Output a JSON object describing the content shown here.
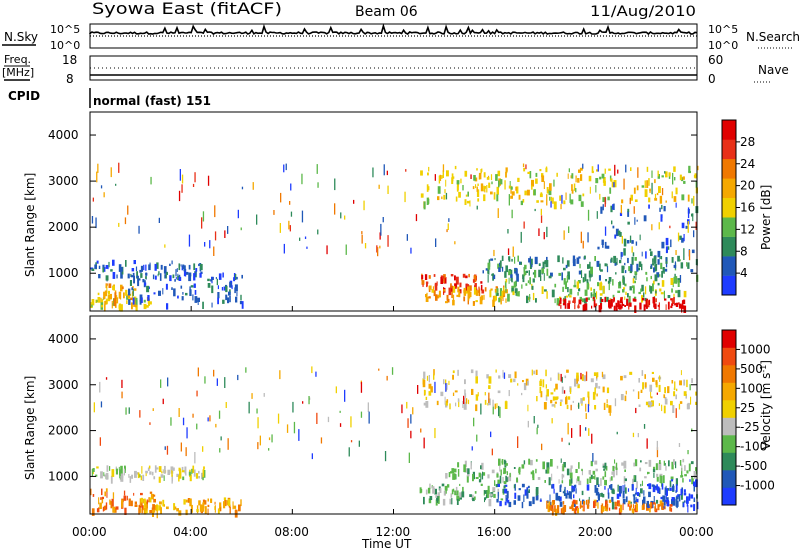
{
  "header": {
    "station": "Syowa East (fitACF)",
    "beam": "Beam 06",
    "date": "11/Aug/2010"
  },
  "top_panels": {
    "nsky_label": "N.Sky",
    "nsky_ticks": [
      "10^5",
      "10^0"
    ],
    "nsearch_label": "N.Search",
    "freq_label": "Freq.",
    "freq_unit": "[MHz]",
    "freq_ticks": [
      "18",
      "8"
    ],
    "nave_ticks": [
      "60",
      "0"
    ],
    "nave_label": "Nave",
    "cpid_label": "CPID",
    "cpid_value": "normal (fast) 151"
  },
  "colors": {
    "power": [
      "#1e3cff",
      "#2058b8",
      "#2e8a5a",
      "#5cb84a",
      "#f0d000",
      "#f5a800",
      "#f07800",
      "#e83018",
      "#e00000"
    ],
    "velocity": [
      "#e00000",
      "#f04a10",
      "#f07800",
      "#f5a800",
      "#f0d000",
      "#bdbdbd",
      "#5cb84a",
      "#2e8a5a",
      "#2058b8",
      "#1e3cff"
    ]
  },
  "chart_data": [
    {
      "type": "heatmap",
      "name": "power",
      "xlabel": "Time UT",
      "ylabel": "Slant Range [km]",
      "x_ticks": [
        "00:00",
        "04:00",
        "08:00",
        "12:00",
        "16:00",
        "20:00",
        "00:00"
      ],
      "y_ticks": [
        1000,
        2000,
        3000,
        4000
      ],
      "ylim": [
        180,
        4500
      ],
      "xlim_hours": [
        0,
        24
      ],
      "colorbar_label": "Power [dB]",
      "colorbar_ticks": [
        4,
        8,
        12,
        16,
        20,
        24,
        28
      ],
      "regions": [
        {
          "t0": 0.0,
          "t1": 2.4,
          "r0": 250,
          "r1": 500,
          "level": 4
        },
        {
          "t0": 0.3,
          "t1": 1.8,
          "r0": 300,
          "r1": 750,
          "level": 5
        },
        {
          "t0": 0.0,
          "t1": 4.5,
          "r0": 900,
          "r1": 1250,
          "level": 1
        },
        {
          "t0": 1.5,
          "t1": 6.0,
          "r0": 300,
          "r1": 1000,
          "level": 1
        },
        {
          "t0": 13.0,
          "t1": 15.5,
          "r0": 600,
          "r1": 950,
          "level": 7
        },
        {
          "t0": 13.2,
          "t1": 16.5,
          "r0": 350,
          "r1": 700,
          "level": 5
        },
        {
          "t0": 15.5,
          "t1": 24.0,
          "r0": 900,
          "r1": 1350,
          "level": 2
        },
        {
          "t0": 16.0,
          "t1": 23.5,
          "r0": 400,
          "r1": 900,
          "level": 3
        },
        {
          "t0": 18.5,
          "t1": 23.5,
          "r0": 250,
          "r1": 450,
          "level": 8
        },
        {
          "t0": 20.0,
          "t1": 24.0,
          "r0": 1400,
          "r1": 2500,
          "level": 1
        },
        {
          "t0": 13.0,
          "t1": 24.0,
          "r0": 2500,
          "r1": 3300,
          "level": 4
        }
      ]
    },
    {
      "type": "heatmap",
      "name": "velocity",
      "xlabel": "Time UT",
      "ylabel": "Slant Range [km]",
      "x_ticks": [
        "00:00",
        "04:00",
        "08:00",
        "12:00",
        "16:00",
        "20:00",
        "00:00"
      ],
      "y_ticks": [
        1000,
        2000,
        3000,
        4000
      ],
      "ylim": [
        180,
        4500
      ],
      "xlim_hours": [
        0,
        24
      ],
      "colorbar_label": "Velocity [m s^-1]",
      "colorbar_ticks": [
        1000,
        500,
        100,
        25,
        -25,
        -100,
        -500,
        -1000
      ],
      "regions": [
        {
          "t0": 0.0,
          "t1": 2.5,
          "r0": 250,
          "r1": 700,
          "level": 2
        },
        {
          "t0": 0.0,
          "t1": 4.5,
          "r0": 950,
          "r1": 1200,
          "level": 5
        },
        {
          "t0": 2.0,
          "t1": 6.0,
          "r0": 200,
          "r1": 500,
          "level": 3
        },
        {
          "t0": 13.0,
          "t1": 16.5,
          "r0": 450,
          "r1": 800,
          "level": 6
        },
        {
          "t0": 14.0,
          "t1": 24.0,
          "r0": 850,
          "r1": 1350,
          "level": 6
        },
        {
          "t0": 16.0,
          "t1": 24.0,
          "r0": 400,
          "r1": 800,
          "level": 8
        },
        {
          "t0": 18.0,
          "t1": 23.0,
          "r0": 250,
          "r1": 450,
          "level": 2
        },
        {
          "t0": 22.0,
          "t1": 24.0,
          "r0": 300,
          "r1": 900,
          "level": 9
        },
        {
          "t0": 13.0,
          "t1": 24.0,
          "r0": 2500,
          "r1": 3300,
          "level": 4
        }
      ]
    }
  ]
}
